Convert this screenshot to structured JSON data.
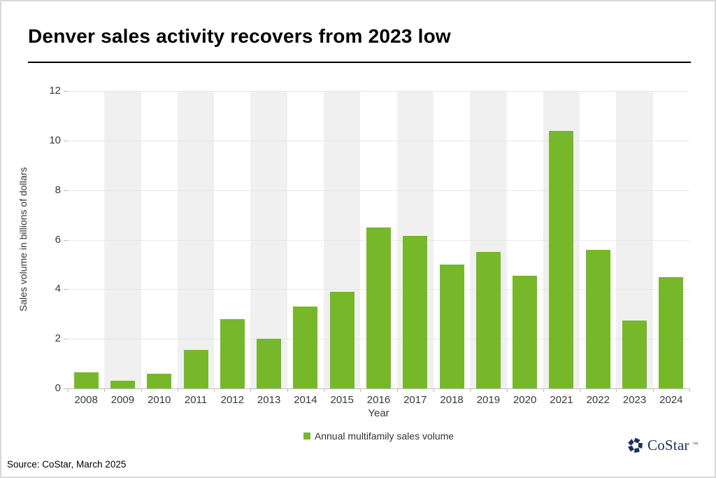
{
  "chart_data": {
    "type": "bar",
    "title": "Denver sales activity recovers from 2023 low",
    "categories": [
      "2008",
      "2009",
      "2010",
      "2011",
      "2012",
      "2013",
      "2014",
      "2015",
      "2016",
      "2017",
      "2018",
      "2019",
      "2020",
      "2021",
      "2022",
      "2023",
      "2024"
    ],
    "series": [
      {
        "name": "Annual multifamily sales volume",
        "values": [
          0.65,
          0.3,
          0.6,
          1.55,
          2.8,
          2.0,
          3.3,
          3.9,
          6.5,
          6.15,
          5.0,
          5.5,
          4.55,
          10.4,
          5.6,
          2.75,
          4.5
        ]
      }
    ],
    "xlabel": "Year",
    "ylabel": "Sales volume in billions of dollars",
    "ylim": [
      0,
      12
    ],
    "yticks": [
      0,
      2,
      4,
      6,
      8,
      10,
      12
    ],
    "grid": true,
    "legend_position": "bottom",
    "bar_color": "#76b82a",
    "stripe_color": "#f0f0f0",
    "grid_color": "#e7e7e7",
    "axis_color": "#bdbdbd",
    "text_color": "#383838"
  },
  "footer": {
    "source": "Source: CoStar, March 2025",
    "logo_text": "CoStar",
    "logo_tm": "™",
    "logo_color": "#1f2f57"
  }
}
